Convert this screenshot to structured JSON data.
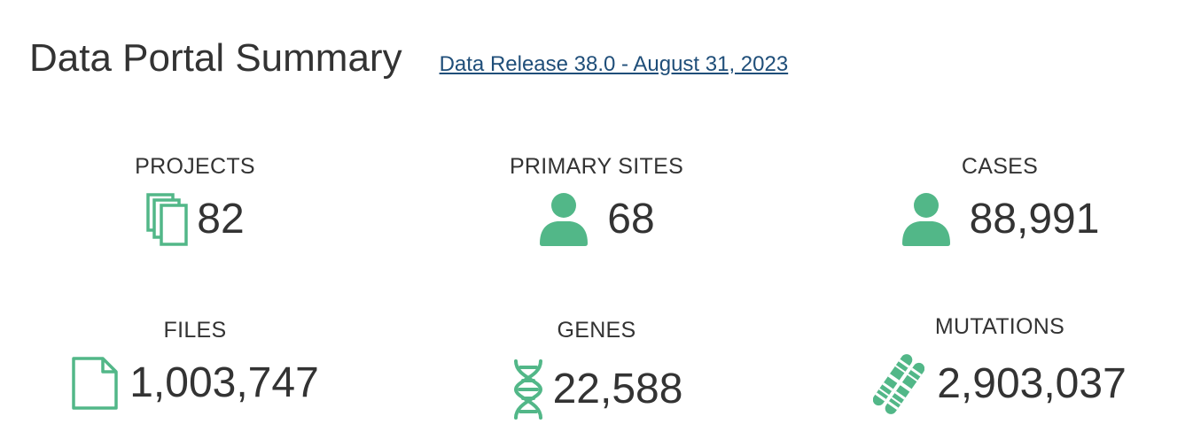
{
  "header": {
    "title": "Data Portal Summary",
    "release_link": "Data Release 38.0 - August 31, 2023"
  },
  "colors": {
    "accent": "#52b788",
    "text": "#333333",
    "link": "#1f4e79"
  },
  "stats": {
    "projects": {
      "label": "PROJECTS",
      "value": "82",
      "icon": "projects-stack-icon"
    },
    "primary_sites": {
      "label": "PRIMARY SITES",
      "value": "68",
      "icon": "person-icon"
    },
    "cases": {
      "label": "CASES",
      "value": "88,991",
      "icon": "person-icon"
    },
    "files": {
      "label": "FILES",
      "value": "1,003,747",
      "icon": "file-icon"
    },
    "genes": {
      "label": "GENES",
      "value": "22,588",
      "icon": "dna-icon"
    },
    "mutations": {
      "label": "MUTATIONS",
      "value": "2,903,037",
      "icon": "chromosome-icon"
    }
  }
}
